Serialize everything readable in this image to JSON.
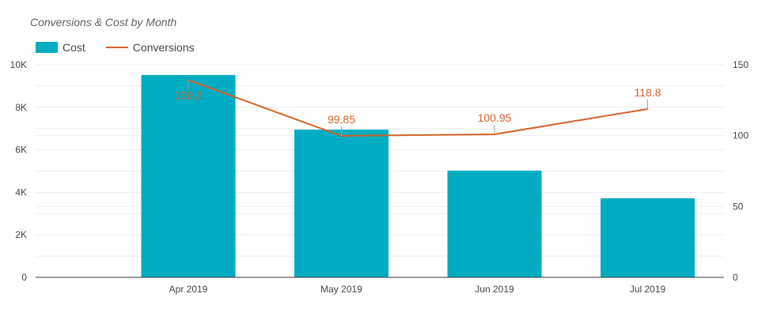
{
  "chart_data": {
    "type": "bar+line",
    "title": "Conversions & Cost by Month",
    "categories": [
      "Apr 2019",
      "May 2019",
      "Jun 2019",
      "Jul 2019"
    ],
    "series": [
      {
        "name": "Cost",
        "type": "bar",
        "axis": "left",
        "color": "#00acc1",
        "values": [
          9520,
          6950,
          5020,
          3720
        ]
      },
      {
        "name": "Conversions",
        "type": "line",
        "axis": "right",
        "color": "#d4622a",
        "values": [
          139.2,
          99.85,
          100.95,
          118.8
        ],
        "labels": [
          "139.2",
          "99.85",
          "100.95",
          "118.8"
        ]
      }
    ],
    "left_axis": {
      "ylim": [
        0,
        10000
      ],
      "ticks": [
        0,
        2000,
        4000,
        6000,
        8000,
        10000
      ],
      "tick_labels": [
        "0",
        "2K",
        "4K",
        "6K",
        "8K",
        "10K"
      ]
    },
    "right_axis": {
      "ylim": [
        0,
        150
      ],
      "ticks": [
        0,
        50,
        100,
        150
      ],
      "tick_labels": [
        "0",
        "50",
        "100",
        "150"
      ]
    },
    "legend": "top-left",
    "grid": true
  }
}
